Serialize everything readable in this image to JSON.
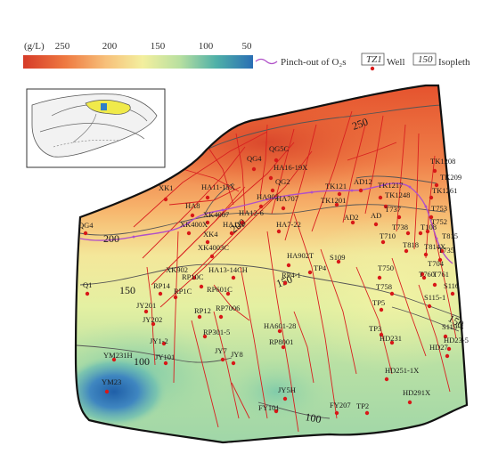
{
  "legend": {
    "unit_label": "(g/L)",
    "scale_ticks": [
      "250",
      "200",
      "150",
      "100",
      "50"
    ],
    "pinchout_label": "Pinch-out of O₂s",
    "well_symbol_text": "TZ1",
    "well_label": "Well",
    "isopleth_symbol_text": "150",
    "isopleth_label": "Isopleth",
    "colors": {
      "high_salinity": "#d9432a",
      "mid_high": "#f4a35a",
      "mid": "#f3ef9a",
      "mid_low": "#a8d8a0",
      "low_salinity": "#2f6fb0",
      "pinchout_line": "#b050c8",
      "fault_line": "#d82020",
      "well_marker": "#d81818"
    }
  },
  "isopleths": [
    "250",
    "200",
    "200",
    "150",
    "150",
    "150",
    "100",
    "100"
  ],
  "wells": [
    "QG5C",
    "QG4",
    "HA16-19X",
    "XK1",
    "HA11-15X",
    "QG2",
    "HA902",
    "HA8",
    "HA707",
    "XK4007",
    "HA12-6",
    "XK400X",
    "HA121",
    "XK4",
    "XK4003C",
    "HA7-22",
    "TK121",
    "TK1201",
    "AD12",
    "TK1217",
    "TK1248",
    "TK1208",
    "TK209",
    "TK1261",
    "T737",
    "T753",
    "T752",
    "T738",
    "T108",
    "AD2",
    "AD",
    "T710",
    "T818",
    "T815",
    "T735",
    "T814X",
    "T704",
    "T760",
    "T761",
    "T750",
    "T758",
    "S116",
    "S115-1",
    "S109",
    "HA902T",
    "TP4",
    "RP4-1",
    "XK902",
    "RP10C",
    "HA13-14CH",
    "RP14",
    "RP1C",
    "RP601C",
    "JY201",
    "JY202",
    "RP12",
    "RP7006",
    "RP301-5",
    "JY1-2",
    "JY101",
    "HA601-28",
    "RP8001",
    "QG4",
    "Q1",
    "YM231H",
    "YM23",
    "JY7",
    "JY8",
    "JY5H",
    "FY101",
    "FY207",
    "TP2",
    "TP5",
    "TP3",
    "HD231",
    "S119-3",
    "HD23-5",
    "HD27",
    "HD251-1X",
    "HD291X"
  ]
}
